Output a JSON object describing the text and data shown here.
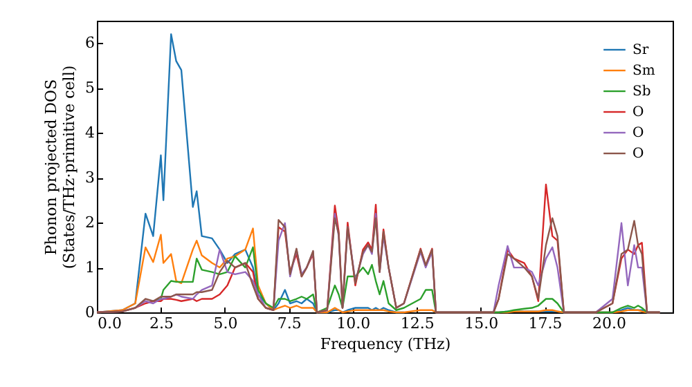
{
  "chart_data": {
    "type": "line",
    "xlabel": "Frequency (THz)",
    "ylabel": "Phonon projected DOS\n(States/THz·primitive cell)",
    "xlim": [
      0,
      22.5
    ],
    "ylim": [
      0,
      6.5
    ],
    "xticks": [
      {
        "value": 0,
        "label": "0.0"
      },
      {
        "value": 2.5,
        "label": "2.5"
      },
      {
        "value": 5,
        "label": "5.0"
      },
      {
        "value": 7.5,
        "label": "7.5"
      },
      {
        "value": 10,
        "label": "10.0"
      },
      {
        "value": 12.5,
        "label": "12.5"
      },
      {
        "value": 15,
        "label": "15.0"
      },
      {
        "value": 17.5,
        "label": "17.5"
      },
      {
        "value": 20,
        "label": "20.0"
      }
    ],
    "yticks": [
      0,
      1,
      2,
      3,
      4,
      5,
      6
    ],
    "legend": "top right",
    "x": [
      0,
      1.0,
      1.5,
      1.9,
      2.2,
      2.5,
      2.6,
      2.9,
      3.1,
      3.3,
      3.75,
      3.9,
      4.1,
      4.5,
      4.8,
      5.1,
      5.4,
      5.8,
      6.1,
      6.3,
      6.6,
      6.9,
      7.1,
      7.35,
      7.55,
      7.8,
      8.0,
      8.2,
      8.45,
      8.6,
      9.0,
      9.3,
      9.45,
      9.6,
      9.8,
      10.1,
      10.4,
      10.6,
      10.75,
      10.9,
      11.05,
      11.2,
      11.4,
      11.7,
      12.0,
      12.65,
      12.85,
      13.1,
      13.25,
      14.5,
      15.5,
      15.7,
      16.05,
      16.3,
      16.7,
      17.0,
      17.25,
      17.55,
      17.8,
      18.0,
      18.25,
      19.5,
      20.15,
      20.5,
      20.75,
      21.0,
      21.15,
      21.3,
      21.5,
      22.0
    ],
    "series": [
      {
        "name": "Sr",
        "color": "#1f77b4",
        "values": [
          0,
          0.05,
          0.2,
          2.2,
          1.7,
          3.5,
          2.5,
          6.2,
          5.6,
          5.4,
          2.35,
          2.7,
          1.7,
          1.65,
          1.4,
          1.1,
          1.3,
          1.4,
          1.0,
          0.4,
          0.2,
          0.05,
          0.2,
          0.5,
          0.2,
          0.25,
          0.2,
          0.3,
          0.2,
          0,
          0,
          0.05,
          0.05,
          0,
          0.05,
          0.1,
          0.1,
          0.1,
          0.05,
          0.1,
          0.05,
          0.1,
          0.05,
          0,
          0,
          null,
          null,
          0.05,
          0,
          0,
          0,
          0,
          0.02,
          0.02,
          0.02,
          0.02,
          0.02,
          0.02,
          0.02,
          0.02,
          0,
          0,
          0,
          0.05,
          0.1,
          0.05,
          0.05,
          0.05,
          0,
          0
        ]
      },
      {
        "name": "Sm",
        "color": "#ff7f0e",
        "values": [
          0,
          0.05,
          0.2,
          1.45,
          1.12,
          1.73,
          1.1,
          1.3,
          0.7,
          0.65,
          1.4,
          1.6,
          1.27,
          1.1,
          1.0,
          1.2,
          1.25,
          1.4,
          1.87,
          0.6,
          0.2,
          0.05,
          0.1,
          0.15,
          0.1,
          0.15,
          0.1,
          0.1,
          0.1,
          0,
          0,
          0.1,
          0.05,
          0,
          0.02,
          0.05,
          0.05,
          0.05,
          0.05,
          0.05,
          0.05,
          0.05,
          0.02,
          0,
          0,
          0.05,
          0.05,
          0.05,
          0,
          0,
          0,
          0,
          0,
          0.02,
          0.02,
          0.02,
          0.02,
          0.05,
          0.05,
          0.02,
          0,
          0,
          0,
          0.02,
          0.05,
          0.05,
          0.05,
          0.02,
          0,
          0
        ]
      },
      {
        "name": "Sb",
        "color": "#2ca02c",
        "values": [
          null,
          null,
          null,
          null,
          0.25,
          0.3,
          0.5,
          0.7,
          0.68,
          0.68,
          0.68,
          1.2,
          0.95,
          0.9,
          0.85,
          0.9,
          1.25,
          1.0,
          1.45,
          0.5,
          0.2,
          0.1,
          0.3,
          0.3,
          0.25,
          0.3,
          0.35,
          0.3,
          0.4,
          0,
          0.1,
          0.6,
          0.4,
          0.1,
          0.8,
          0.8,
          1.0,
          0.85,
          1.06,
          0.7,
          0.4,
          0.7,
          0.2,
          0.05,
          0.1,
          0.3,
          0.5,
          0.5,
          0,
          0,
          0,
          0,
          0.02,
          0.05,
          0.08,
          0.1,
          0.15,
          0.3,
          0.3,
          0.2,
          0,
          0,
          0,
          0.1,
          0.15,
          0.1,
          0.15,
          0.1,
          0,
          0
        ]
      },
      {
        "name": "O",
        "color": "#d62728",
        "values": [
          0,
          0.02,
          0.1,
          0.2,
          0.25,
          0.25,
          0.3,
          0.3,
          0.28,
          0.25,
          0.3,
          0.25,
          0.3,
          0.3,
          0.4,
          0.6,
          1.0,
          1.1,
          0.9,
          0.3,
          0.1,
          0.05,
          1.9,
          1.8,
          0.9,
          1.3,
          0.8,
          1.0,
          1.3,
          0,
          0.05,
          2.38,
          1.8,
          0.1,
          2.0,
          0.6,
          1.4,
          1.56,
          1.4,
          2.4,
          0.9,
          1.85,
          1.0,
          0.1,
          0.2,
          1.42,
          1.05,
          1.42,
          0,
          0,
          0,
          0.3,
          1.4,
          1.2,
          1.1,
          0.8,
          0.25,
          2.85,
          1.7,
          1.6,
          0,
          0,
          0.2,
          1.2,
          1.4,
          1.3,
          1.5,
          1.55,
          0,
          0
        ]
      },
      {
        "name": "O",
        "color": "#9467bd",
        "values": [
          0,
          0.02,
          0.1,
          0.25,
          0.2,
          0.3,
          0.3,
          0.35,
          0.4,
          0.35,
          0.3,
          0.4,
          0.5,
          0.6,
          1.4,
          0.9,
          0.85,
          0.9,
          0.7,
          0.4,
          0.1,
          0.05,
          1.6,
          1.99,
          0.8,
          1.4,
          0.85,
          1.0,
          1.35,
          0,
          0.05,
          2.2,
          1.7,
          0.1,
          1.9,
          0.7,
          1.3,
          1.5,
          1.3,
          2.2,
          0.9,
          1.7,
          1.0,
          0.1,
          0.2,
          1.35,
          1.0,
          1.35,
          0,
          0,
          0,
          0.6,
          1.48,
          1.0,
          1.0,
          0.9,
          0.6,
          1.2,
          1.45,
          1.0,
          0,
          0,
          0.3,
          1.99,
          0.6,
          1.5,
          1.0,
          1.0,
          0,
          0
        ]
      },
      {
        "name": "O",
        "color": "#8c564b",
        "values": [
          0,
          0.02,
          0.1,
          0.3,
          0.25,
          0.35,
          0.35,
          0.35,
          0.4,
          0.4,
          0.4,
          0.45,
          0.45,
          0.5,
          0.9,
          1.15,
          1.0,
          1.1,
          0.6,
          0.3,
          0.1,
          0.05,
          2.06,
          1.9,
          0.85,
          1.42,
          0.8,
          1.0,
          1.37,
          0,
          0.05,
          2.1,
          1.75,
          0.1,
          1.9,
          0.65,
          1.35,
          1.5,
          1.35,
          2.1,
          0.9,
          1.8,
          1.0,
          0.1,
          0.2,
          1.4,
          1.05,
          1.4,
          0,
          0,
          0,
          0.3,
          1.3,
          1.2,
          1.0,
          0.8,
          0.3,
          1.5,
          2.1,
          1.7,
          0,
          0,
          0.2,
          1.3,
          1.4,
          2.04,
          1.5,
          1.3,
          0,
          0
        ]
      }
    ]
  }
}
